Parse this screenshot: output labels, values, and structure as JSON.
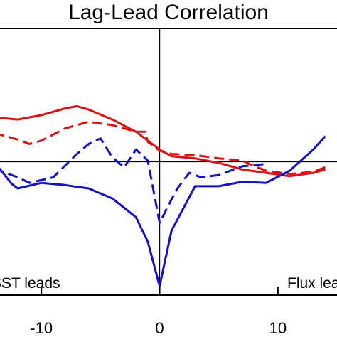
{
  "chart_data": {
    "type": "line",
    "title": "Lag-Lead Correlation",
    "xlabel": "",
    "ylabel": "",
    "xlim": [
      -13.5,
      15
    ],
    "ylim": [
      -0.6,
      0.6
    ],
    "x_ticks": [
      -10,
      0,
      10
    ],
    "x_tick_labels": [
      "-10",
      "0",
      "10"
    ],
    "annotations": {
      "left": "SST leads",
      "right": "Flux leads"
    },
    "grid": false,
    "series": [
      {
        "color": "#dd1111",
        "dash": "solid",
        "x": [
          -14,
          -12,
          -10,
          -8,
          -7,
          -6,
          -4,
          -2,
          0,
          1,
          3,
          5,
          7,
          9,
          11,
          13,
          14
        ],
        "y": [
          0.2,
          0.19,
          0.21,
          0.24,
          0.25,
          0.235,
          0.19,
          0.135,
          0.055,
          0.025,
          0.015,
          -0.005,
          -0.035,
          -0.05,
          -0.065,
          -0.05,
          -0.035
        ]
      },
      {
        "color": "#dd1111",
        "dash": "dashed",
        "x": [
          -14,
          -12,
          -11,
          -10,
          -8,
          -6,
          -4,
          -2,
          -1.2,
          -1,
          0,
          1,
          3,
          5,
          7,
          8,
          9,
          11,
          13,
          14
        ],
        "y": [
          0.13,
          0.1,
          0.08,
          0.095,
          0.15,
          0.18,
          0.165,
          0.135,
          0.135,
          0.09,
          0.05,
          0.035,
          0.03,
          0.015,
          0.005,
          -0.02,
          -0.04,
          -0.055,
          -0.045,
          -0.025
        ]
      },
      {
        "color": "#1111cc",
        "dash": "solid",
        "x": [
          -14,
          -12.5,
          -12,
          -10,
          -8,
          -6,
          -4,
          -2,
          -1,
          0,
          1,
          3,
          5,
          7,
          9,
          11,
          13,
          14
        ],
        "y": [
          0.0,
          -0.1,
          -0.12,
          -0.095,
          -0.105,
          -0.12,
          -0.165,
          -0.25,
          -0.36,
          -0.56,
          -0.31,
          -0.11,
          -0.11,
          -0.09,
          -0.095,
          -0.04,
          0.055,
          0.115
        ]
      },
      {
        "color": "#1111cc",
        "dash": "dashed",
        "x": [
          -14,
          -12,
          -11,
          -9,
          -7,
          -6,
          -5,
          -4,
          -3,
          -2,
          -1,
          0,
          1,
          1.5,
          2.5,
          3.5,
          5,
          7,
          9
        ],
        "y": [
          -0.03,
          -0.07,
          -0.095,
          -0.07,
          0.035,
          0.08,
          0.105,
          0.02,
          -0.025,
          0.055,
          0.005,
          -0.275,
          -0.17,
          -0.12,
          -0.05,
          -0.07,
          -0.06,
          -0.02,
          -0.01
        ]
      }
    ]
  }
}
